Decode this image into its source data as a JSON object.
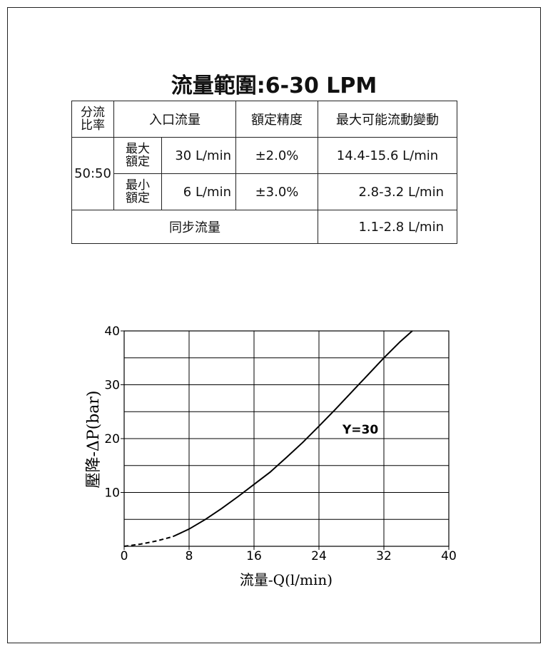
{
  "title": "流量範圍:6-30 LPM",
  "table": {
    "header": {
      "ratio": "分流\n比率",
      "inlet": "入口流量",
      "accuracy": "額定精度",
      "variation": "最大可能流動變動"
    },
    "ratio_value": "50:50",
    "rows": [
      {
        "label": "最大\n額定",
        "flow": "30 L/min",
        "accuracy": "±2.0%",
        "variation": "14.4-15.6 L/min"
      },
      {
        "label": "最小\n額定",
        "flow": "6 L/min",
        "accuracy": "±3.0%",
        "variation": "2.8-3.2 L/min"
      }
    ],
    "sync": {
      "label": "同步流量",
      "value": "1.1-2.8 L/min"
    }
  },
  "chart_data": {
    "type": "line",
    "xlabel": "流量-Q(l/min)",
    "ylabel": "壓降-ΔP(bar)",
    "xlim": [
      0,
      40
    ],
    "ylim": [
      0,
      40
    ],
    "x_ticks": [
      "0",
      "8",
      "16",
      "24",
      "32",
      "40"
    ],
    "y_ticks": [
      "10",
      "20",
      "30",
      "40"
    ],
    "grid": true,
    "annotation": "Y=30",
    "series": [
      {
        "name": "Y=30",
        "dashed_until_x": 6,
        "points": [
          [
            0,
            0
          ],
          [
            2,
            0.4
          ],
          [
            4,
            1.0
          ],
          [
            6,
            1.8
          ],
          [
            8,
            3.2
          ],
          [
            10,
            5.0
          ],
          [
            12,
            7.0
          ],
          [
            14,
            9.2
          ],
          [
            16,
            11.5
          ],
          [
            18,
            13.8
          ],
          [
            20,
            16.5
          ],
          [
            22,
            19.3
          ],
          [
            24,
            22.3
          ],
          [
            26,
            25.4
          ],
          [
            28,
            28.6
          ],
          [
            30,
            31.8
          ],
          [
            32,
            35.0
          ],
          [
            34,
            38.0
          ],
          [
            35.5,
            40
          ]
        ]
      }
    ],
    "colors": {
      "line": "#000000",
      "grid": "#000000"
    }
  }
}
